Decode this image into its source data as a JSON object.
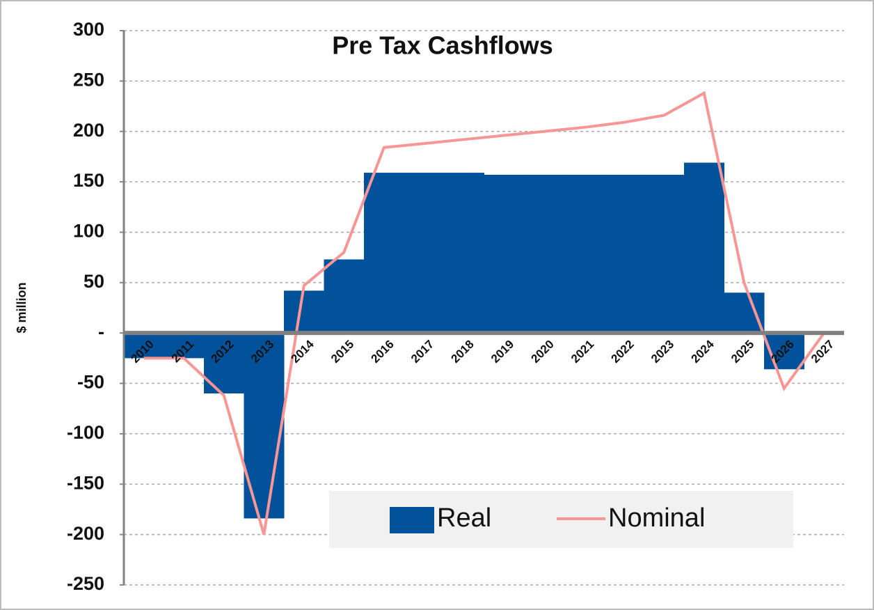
{
  "chart_data": {
    "type": "bar+line",
    "title": "Pre Tax Cashflows",
    "y_label": "$ million",
    "categories": [
      "2010",
      "2011",
      "2012",
      "2013",
      "2014",
      "2015",
      "2016",
      "2017",
      "2018",
      "2019",
      "2020",
      "2021",
      "2022",
      "2023",
      "2024",
      "2025",
      "2026",
      "2027"
    ],
    "series": [
      {
        "name": "Real",
        "type": "bar",
        "color": "#02529b",
        "values": [
          -25,
          -25,
          -60,
          -184,
          42,
          73,
          159,
          159,
          159,
          157,
          157,
          157,
          157,
          157,
          169,
          40,
          -36,
          0
        ]
      },
      {
        "name": "Nominal",
        "type": "line",
        "color": "#f79695",
        "values": [
          -25,
          -25,
          -62,
          -200,
          47,
          80,
          184,
          188,
          192,
          196,
          200,
          204,
          209,
          216,
          238,
          50,
          -55,
          0
        ]
      }
    ],
    "ylim": [
      -250,
      300
    ],
    "yticks": [
      -250,
      -200,
      -150,
      -100,
      -50,
      {
        "value": 0,
        "label": "-"
      },
      50,
      100,
      150,
      200,
      250,
      300
    ],
    "grid": true,
    "legend": "bottom-right"
  }
}
